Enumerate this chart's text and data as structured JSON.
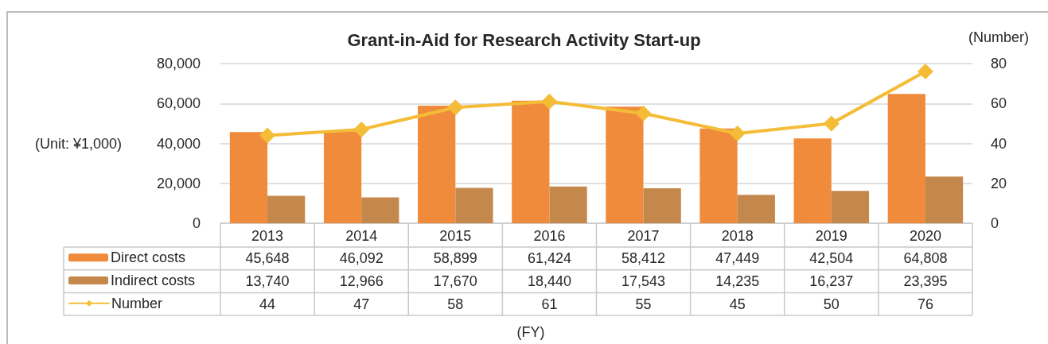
{
  "chart_data": {
    "type": "bar",
    "title": "Grant-in-Aid for Research Activity Start-up",
    "ylabel": "(Unit: ¥1,000)",
    "y2label": "(Number)",
    "annotations": [
      "(FY)"
    ],
    "categories": [
      "2013",
      "2014",
      "2015",
      "2016",
      "2017",
      "2018",
      "2019",
      "2020"
    ],
    "series": [
      {
        "name": "Direct costs",
        "color": "#ef8b3a",
        "values": [
          45648,
          46092,
          58899,
          61424,
          58412,
          47449,
          42504,
          64808
        ],
        "value_labels": [
          "45,648",
          "46,092",
          "58,899",
          "61,424",
          "58,412",
          "47,449",
          "42,504",
          "64,808"
        ]
      },
      {
        "name": "Indirect costs",
        "color": "#c5884c",
        "values": [
          13740,
          12966,
          17670,
          18440,
          17543,
          14235,
          16237,
          23395
        ],
        "value_labels": [
          "13,740",
          "12,966",
          "17,670",
          "18,440",
          "17,543",
          "14,235",
          "16,237",
          "23,395"
        ]
      },
      {
        "name": "Number",
        "type": "line",
        "axis": "y2",
        "color": "#f4bc37",
        "values": [
          44,
          47,
          58,
          61,
          55,
          45,
          50,
          76
        ],
        "value_labels": [
          "44",
          "47",
          "58",
          "61",
          "55",
          "45",
          "50",
          "76"
        ]
      }
    ],
    "ylim": [
      0,
      80000
    ],
    "yticks": [
      0,
      {
        "value": 20000,
        "label": "20,000"
      },
      {
        "value": 40000,
        "label": "40,000"
      },
      {
        "value": 60000,
        "label": "60,000"
      },
      {
        "value": 80000,
        "label": "80,000"
      }
    ],
    "y2lim": [
      0,
      80
    ],
    "y2ticks": [
      0,
      20,
      40,
      60,
      80
    ],
    "grid": "y",
    "legend": "bottom left",
    "marker": "diamond"
  }
}
